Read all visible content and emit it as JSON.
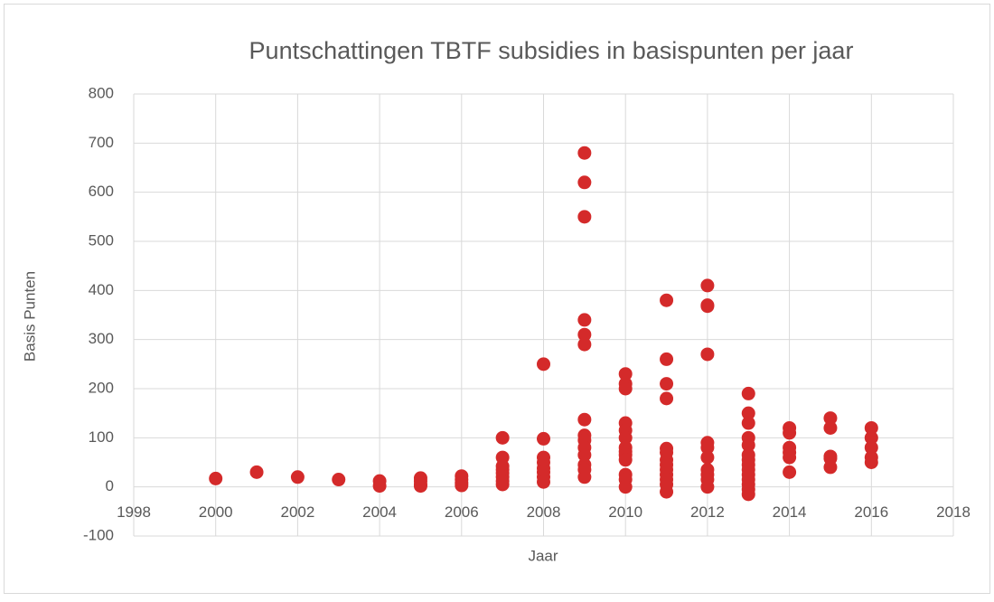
{
  "chart_data": {
    "type": "scatter",
    "title": "Puntschattingen TBTF subsidies in basispunten per jaar",
    "x_label": "Jaar",
    "y_label": "Basis Punten",
    "color": "#d42a2a",
    "grid": true,
    "xlim": [
      1998,
      2018
    ],
    "xticks": [
      1998,
      2000,
      2002,
      2004,
      2006,
      2008,
      2010,
      2012,
      2014,
      2016,
      2018
    ],
    "ylim": [
      -100,
      800
    ],
    "yticks": [
      -100,
      0,
      100,
      200,
      300,
      400,
      500,
      600,
      700,
      800
    ],
    "x": [
      2000,
      2001,
      2002,
      2003,
      2004,
      2004,
      2005,
      2005,
      2005,
      2005,
      2006,
      2006,
      2006,
      2006,
      2007,
      2007,
      2007,
      2007,
      2007,
      2007,
      2007,
      2007,
      2008,
      2008,
      2008,
      2008,
      2008,
      2008,
      2008,
      2008,
      2009,
      2009,
      2009,
      2009,
      2009,
      2009,
      2009,
      2009,
      2009,
      2009,
      2009,
      2009,
      2009,
      2009,
      2010,
      2010,
      2010,
      2010,
      2010,
      2010,
      2010,
      2010,
      2010,
      2010,
      2010,
      2010,
      2010,
      2011,
      2011,
      2011,
      2011,
      2011,
      2011,
      2011,
      2011,
      2011,
      2011,
      2011,
      2011,
      2011,
      2012,
      2012,
      2012,
      2012,
      2012,
      2012,
      2012,
      2012,
      2012,
      2012,
      2012,
      2013,
      2013,
      2013,
      2013,
      2013,
      2013,
      2013,
      2013,
      2013,
      2013,
      2013,
      2013,
      2013,
      2013,
      2014,
      2014,
      2014,
      2014,
      2014,
      2014,
      2015,
      2015,
      2015,
      2015,
      2015,
      2016,
      2016,
      2016,
      2016,
      2016
    ],
    "values": [
      17,
      30,
      20,
      15,
      12,
      2,
      18,
      12,
      5,
      2,
      22,
      15,
      8,
      3,
      100,
      60,
      42,
      35,
      28,
      20,
      12,
      5,
      250,
      98,
      60,
      50,
      38,
      30,
      20,
      10,
      680,
      620,
      550,
      340,
      310,
      290,
      137,
      105,
      95,
      80,
      65,
      45,
      35,
      20,
      230,
      210,
      200,
      130,
      115,
      100,
      80,
      72,
      65,
      55,
      25,
      15,
      0,
      380,
      260,
      210,
      180,
      78,
      70,
      55,
      45,
      35,
      25,
      15,
      5,
      -10,
      410,
      370,
      368,
      270,
      90,
      80,
      60,
      35,
      25,
      15,
      0,
      190,
      150,
      130,
      100,
      85,
      65,
      55,
      45,
      35,
      25,
      15,
      5,
      -5,
      -15,
      120,
      110,
      80,
      70,
      60,
      30,
      140,
      120,
      62,
      58,
      40,
      120,
      100,
      80,
      60,
      50
    ]
  }
}
